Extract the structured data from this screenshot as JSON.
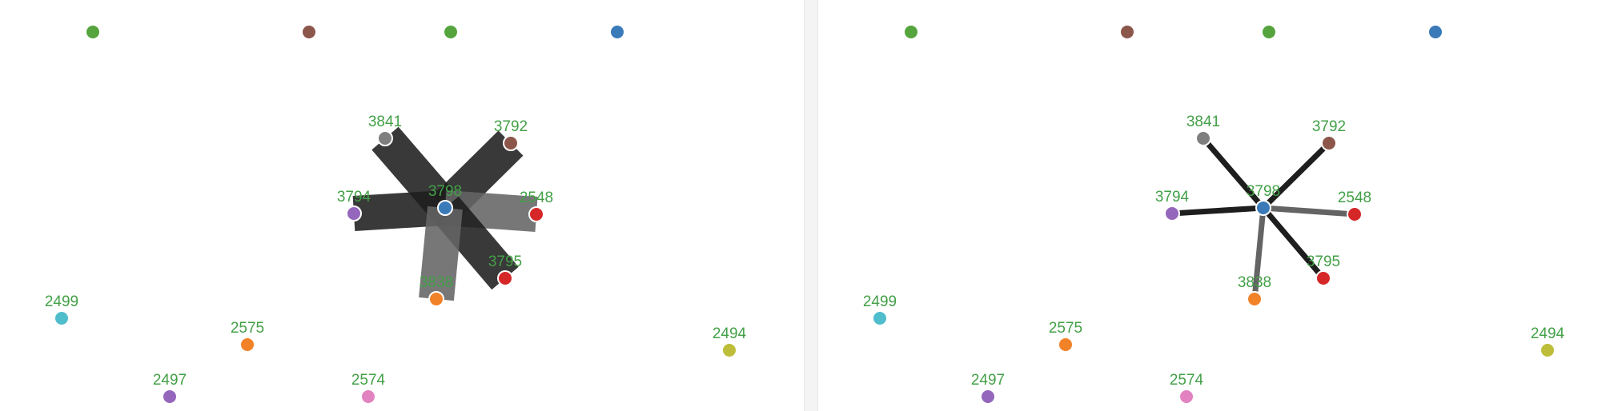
{
  "colors": {
    "label": "#43a047",
    "edge_dark": "#1e1e1e",
    "edge_gray": "#646464",
    "node_stroke": "#ffffff"
  },
  "graph": {
    "nodes": [
      {
        "id": "top-1",
        "label": "",
        "color": "#55a43e"
      },
      {
        "id": "top-2",
        "label": "",
        "color": "#8c564b"
      },
      {
        "id": "top-3",
        "label": "",
        "color": "#55a43e"
      },
      {
        "id": "top-4",
        "label": "",
        "color": "#3a7ab8"
      },
      {
        "id": "3798",
        "label": "3798",
        "color": "#3a7ab8"
      },
      {
        "id": "3841",
        "label": "3841",
        "color": "#7f7f7f"
      },
      {
        "id": "3792",
        "label": "3792",
        "color": "#8c564b"
      },
      {
        "id": "3794",
        "label": "3794",
        "color": "#9467bd"
      },
      {
        "id": "2548",
        "label": "2548",
        "color": "#d62728"
      },
      {
        "id": "3795",
        "label": "3795",
        "color": "#d62728"
      },
      {
        "id": "3838",
        "label": "3838",
        "color": "#f28228"
      },
      {
        "id": "2499",
        "label": "2499",
        "color": "#4fbdcc"
      },
      {
        "id": "2575",
        "label": "2575",
        "color": "#f28228"
      },
      {
        "id": "2494",
        "label": "2494",
        "color": "#bdbd3a"
      },
      {
        "id": "2497",
        "label": "2497",
        "color": "#9467bd"
      },
      {
        "id": "2574",
        "label": "2574",
        "color": "#e282c0"
      }
    ],
    "edges": [
      {
        "from": "3798",
        "to": "3841",
        "tone": "dark"
      },
      {
        "from": "3798",
        "to": "3792",
        "tone": "dark"
      },
      {
        "from": "3798",
        "to": "3794",
        "tone": "dark"
      },
      {
        "from": "3798",
        "to": "2548",
        "tone": "gray"
      },
      {
        "from": "3798",
        "to": "3795",
        "tone": "dark"
      },
      {
        "from": "3798",
        "to": "3838",
        "tone": "gray"
      }
    ]
  }
}
